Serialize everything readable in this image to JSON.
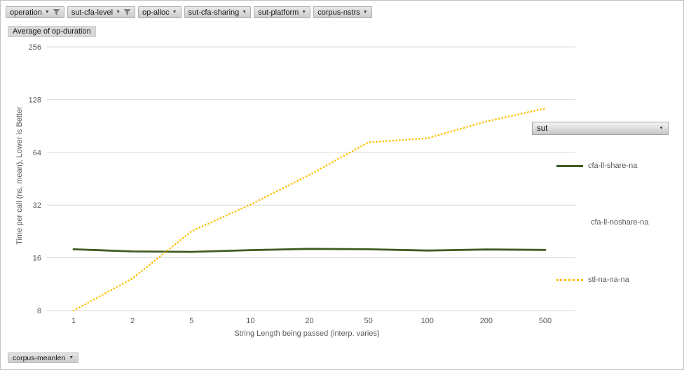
{
  "field_buttons": {
    "row_top": [
      {
        "label": "operation",
        "filtered": true
      },
      {
        "label": "sut-cfa-level",
        "filtered": true
      },
      {
        "label": "op-alloc",
        "filtered": false
      },
      {
        "label": "sut-cfa-sharing",
        "filtered": false
      },
      {
        "label": "sut-platform",
        "filtered": false
      },
      {
        "label": "corpus-nstrs",
        "filtered": false
      }
    ],
    "value_button_label": "Average of op-duration",
    "legend_field_label": "sut",
    "bottom_axis_field_label": "corpus-meanlen"
  },
  "chart_data": {
    "type": "line",
    "title": "Average of op-duration",
    "xlabel": "String Length  being passed (interp. varies)",
    "ylabel": "Time per call (ns, mean),  Lower  is Better",
    "x_scale": "log-category",
    "y_scale": "log2",
    "y_ticks": [
      256,
      128,
      64,
      32,
      16,
      8
    ],
    "ylim": [
      8,
      256
    ],
    "categories": [
      "1",
      "2",
      "5",
      "10",
      "20",
      "50",
      "100",
      "200",
      "500"
    ],
    "grid": true,
    "legend_position": "right",
    "legend_field": "sut",
    "series": [
      {
        "name": "cfa-ll-share-na",
        "color": "#3d5c20",
        "style": "solid",
        "values": [
          17.9,
          17.4,
          17.3,
          17.7,
          18.0,
          17.9,
          17.6,
          17.85,
          17.75
        ]
      },
      {
        "name": "cfa-ll-noshare-na",
        "color": "#ffffff",
        "style": "none",
        "values": []
      },
      {
        "name": "stl-na-na-na",
        "color": "#ffc000",
        "style": "dotted",
        "values": [
          8,
          12.2,
          22.7,
          32.2,
          47.6,
          73,
          77,
          96,
          114
        ]
      }
    ]
  },
  "colors": {
    "grid_line": "#d9d9d9",
    "axis_text": "#595959",
    "button_face": "#d9d9d9",
    "series_green": "#3d5c20",
    "series_yellow": "#ffc000"
  }
}
